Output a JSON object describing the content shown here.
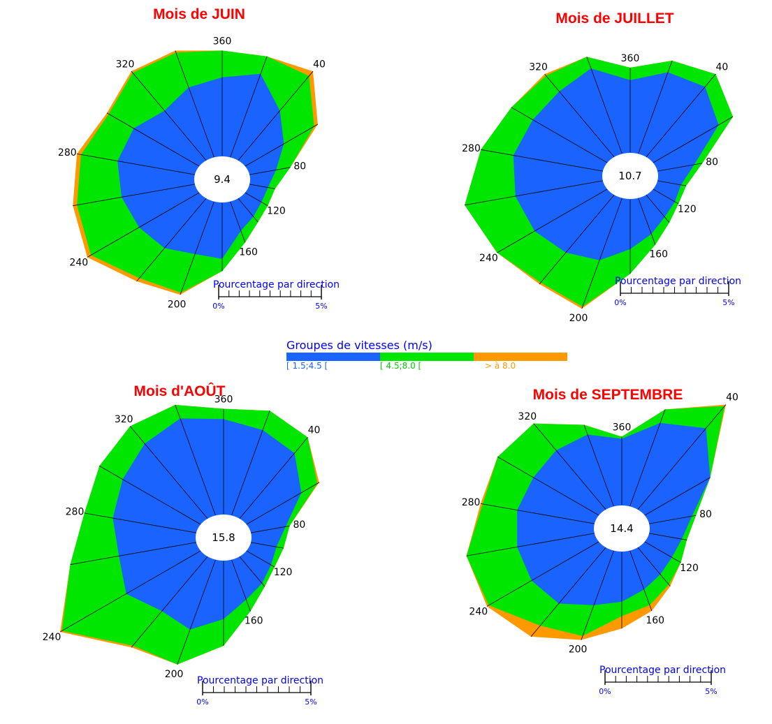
{
  "legend": {
    "title": "Groupes de vitesses (m/s)",
    "items": [
      {
        "label": "[ 1.5;4.5 [",
        "color": "#1b63ff",
        "label_color": "#1b63ff"
      },
      {
        "label": "[ 4.5;8.0 [",
        "color": "#00e600",
        "label_color": "#00cc00"
      },
      {
        "label": "> à 8.0",
        "color": "#ff9900",
        "label_color": "#ff9900"
      }
    ]
  },
  "chart_data": [
    {
      "type": "windrose",
      "title": "Mois de JUIN",
      "calm": "9.4",
      "direction_labels": [
        "360",
        "40",
        "80",
        "120",
        "160",
        "200",
        "240",
        "280",
        "320"
      ],
      "scale": {
        "title": "Pourcentage par direction",
        "min_label": "0%",
        "max_label": "5%"
      },
      "directions_deg": [
        0,
        20,
        40,
        60,
        80,
        100,
        120,
        140,
        160,
        180,
        200,
        220,
        240,
        260,
        280,
        300,
        320,
        340
      ],
      "cumulative_pct": [
        [
          3.6,
          4.1,
          3.0,
          2.1,
          1.3,
          0.9,
          0.85,
          1.0,
          1.3,
          2.5,
          2.5,
          3.0,
          3.3,
          3.6,
          3.8,
          3.6,
          3.0,
          3.4
        ],
        [
          4.9,
          5.0,
          5.2,
          3.8,
          2.0,
          1.25,
          1.2,
          1.35,
          1.9,
          3.1,
          4.5,
          4.9,
          6.0,
          5.8,
          5.6,
          5.0,
          5.4,
          5.2
        ],
        [
          4.9,
          5.0,
          5.5,
          4.0,
          2.0,
          1.25,
          1.2,
          1.35,
          1.9,
          3.1,
          4.6,
          5.1,
          6.2,
          6.0,
          5.8,
          5.1,
          5.5,
          5.3
        ]
      ]
    },
    {
      "type": "windrose",
      "title": "Mois de JUILLET",
      "calm": "10.7",
      "direction_labels": [
        "360",
        "40",
        "80",
        "120",
        "160",
        "200",
        "240",
        "280",
        "320"
      ],
      "scale": {
        "title": "Pourcentage par direction",
        "min_label": "0%",
        "max_label": "5%"
      },
      "directions_deg": [
        0,
        20,
        40,
        60,
        80,
        100,
        120,
        140,
        160,
        180,
        200,
        220,
        240,
        260,
        280,
        300,
        320,
        340
      ],
      "cumulative_pct": [
        [
          3.3,
          4.0,
          4.3,
          3.6,
          1.8,
          1.15,
          1.15,
          1.25,
          1.65,
          2.2,
          3.0,
          3.5,
          4.0,
          4.3,
          4.4,
          4.1,
          4.0,
          4.2
        ],
        [
          3.9,
          4.6,
          5.1,
          4.4,
          2.2,
          1.4,
          1.35,
          1.6,
          2.2,
          3.4,
          5.4,
          5.4,
          6.1,
          6.8,
          6.0,
          5.3,
          5.0,
          4.8
        ],
        [
          3.9,
          4.6,
          5.1,
          4.4,
          2.2,
          1.4,
          1.35,
          1.6,
          2.2,
          3.4,
          5.5,
          5.5,
          6.1,
          6.8,
          6.0,
          5.3,
          5.1,
          4.8
        ]
      ]
    },
    {
      "type": "windrose",
      "title": "Mois d'AOÛT",
      "calm": "15.8",
      "direction_labels": [
        "360",
        "40",
        "80",
        "120",
        "160",
        "200",
        "240",
        "280",
        "320"
      ],
      "scale": {
        "title": "Pourcentage par direction",
        "min_label": "0%",
        "max_label": "5%"
      },
      "directions_deg": [
        0,
        20,
        40,
        60,
        80,
        100,
        120,
        140,
        160,
        180,
        200,
        220,
        240,
        260,
        280,
        300,
        320,
        340
      ],
      "cumulative_pct": [
        [
          4.4,
          4.2,
          4.0,
          3.0,
          1.7,
          1.25,
          1.3,
          1.55,
          1.85,
          2.6,
          3.4,
          3.3,
          4.1,
          3.8,
          4.1,
          4.3,
          4.6,
          4.8
        ],
        [
          4.9,
          5.2,
          5.0,
          3.9,
          1.9,
          1.6,
          1.5,
          1.75,
          2.45,
          3.9,
          5.2,
          5.5,
          7.7,
          6.2,
          5.5,
          5.6,
          5.7,
          5.5
        ],
        [
          4.9,
          5.2,
          5.0,
          4.0,
          1.9,
          1.6,
          1.5,
          1.75,
          2.45,
          3.9,
          5.2,
          5.6,
          7.8,
          6.2,
          5.5,
          5.6,
          5.7,
          5.5
        ]
      ]
    },
    {
      "type": "windrose",
      "title": "Mois de SEPTEMBRE",
      "calm": "14.4",
      "direction_labels": [
        "360",
        "40",
        "80",
        "120",
        "160",
        "200",
        "240",
        "280",
        "320"
      ],
      "scale": {
        "title": "Pourcentage par direction",
        "min_label": "0%",
        "max_label": "5%"
      },
      "directions_deg": [
        0,
        20,
        40,
        60,
        80,
        100,
        120,
        140,
        160,
        180,
        200,
        220,
        240,
        260,
        280,
        300,
        320,
        340
      ],
      "cumulative_pct": [
        [
          3.0,
          4.1,
          5.0,
          3.6,
          2.1,
          1.6,
          1.45,
          1.55,
          1.8,
          2.2,
          2.6,
          3.4,
          3.7,
          3.8,
          3.8,
          3.6,
          3.6,
          3.5
        ],
        [
          3.1,
          4.8,
          6.4,
          3.6,
          2.3,
          1.85,
          1.95,
          2.2,
          2.6,
          2.9,
          4.2,
          4.8,
          6.1,
          6.3,
          5.5,
          5.6,
          5.3,
          4.0
        ],
        [
          3.1,
          4.8,
          6.5,
          3.6,
          2.3,
          1.85,
          1.95,
          2.3,
          2.9,
          3.5,
          4.4,
          5.5,
          6.2,
          6.3,
          5.6,
          5.6,
          5.3,
          4.0
        ]
      ]
    }
  ]
}
